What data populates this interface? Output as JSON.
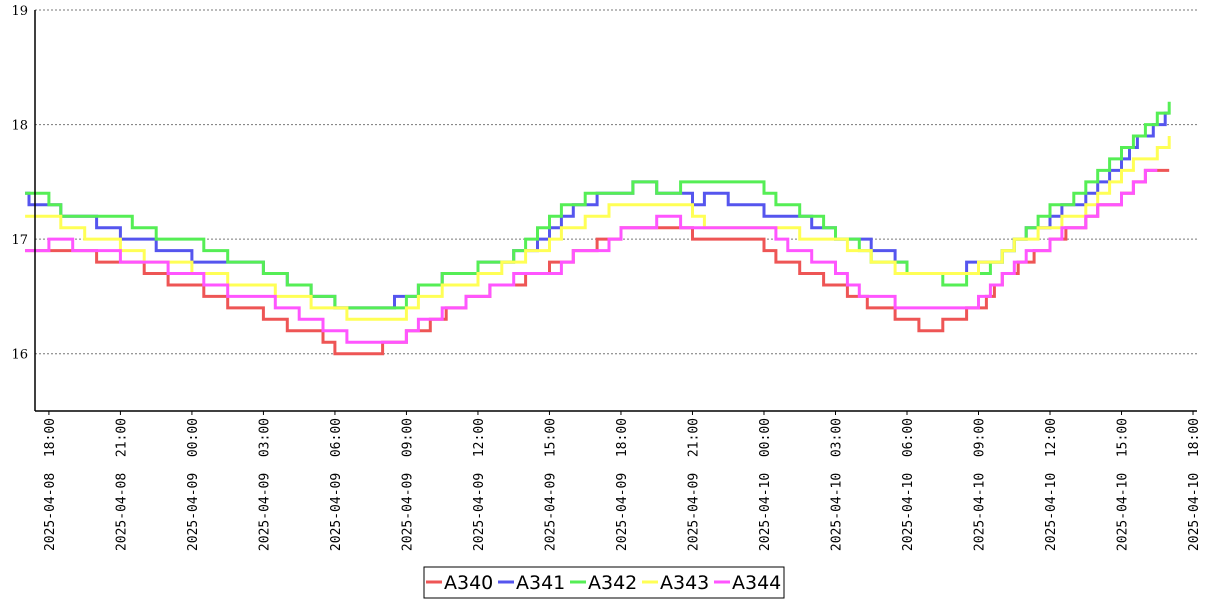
{
  "chart_data": {
    "type": "line",
    "title": "",
    "xlabel": "",
    "ylabel": "",
    "x_unit": "hour",
    "x_start": "2025-04-08 17:00",
    "x_end": "2025-04-10 17:00",
    "x_ticks": [
      "2025-04-08 18:00",
      "2025-04-08 21:00",
      "2025-04-09 00:00",
      "2025-04-09 03:00",
      "2025-04-09 06:00",
      "2025-04-09 09:00",
      "2025-04-09 12:00",
      "2025-04-09 15:00",
      "2025-04-09 18:00",
      "2025-04-09 21:00",
      "2025-04-10 00:00",
      "2025-04-10 03:00",
      "2025-04-10 06:00",
      "2025-04-10 09:00",
      "2025-04-10 12:00",
      "2025-04-10 15:00",
      "2025-04-10 18:00"
    ],
    "y_ticks": [
      "16",
      "17",
      "18",
      "19"
    ],
    "ylim": [
      15.5,
      19
    ],
    "xlim": [
      "2025-04-08 17:25",
      "2025-04-10 18:10"
    ],
    "grid": "horizontal dotted",
    "legend_placement": "bottom-center",
    "series": [
      {
        "name": "A340",
        "color": "#ee5555",
        "points": [
          [
            "2025-04-08 17:00",
            16.9
          ],
          [
            "2025-04-08 19:00",
            16.9
          ],
          [
            "2025-04-08 20:00",
            16.8
          ],
          [
            "2025-04-08 22:00",
            16.7
          ],
          [
            "2025-04-08 23:00",
            16.6
          ],
          [
            "2025-04-09 00:30",
            16.5
          ],
          [
            "2025-04-09 01:30",
            16.4
          ],
          [
            "2025-04-09 03:00",
            16.3
          ],
          [
            "2025-04-09 04:00",
            16.2
          ],
          [
            "2025-04-09 05:30",
            16.1
          ],
          [
            "2025-04-09 06:00",
            16.0
          ],
          [
            "2025-04-09 08:00",
            16.1
          ],
          [
            "2025-04-09 09:00",
            16.2
          ],
          [
            "2025-04-09 10:00",
            16.3
          ],
          [
            "2025-04-09 10:40",
            16.4
          ],
          [
            "2025-04-09 11:30",
            16.5
          ],
          [
            "2025-04-09 12:30",
            16.6
          ],
          [
            "2025-04-09 14:00",
            16.7
          ],
          [
            "2025-04-09 15:00",
            16.8
          ],
          [
            "2025-04-09 16:00",
            16.9
          ],
          [
            "2025-04-09 17:00",
            17.0
          ],
          [
            "2025-04-09 18:00",
            17.1
          ],
          [
            "2025-04-09 20:00",
            17.1
          ],
          [
            "2025-04-09 21:00",
            17.0
          ],
          [
            "2025-04-09 23:30",
            17.0
          ],
          [
            "2025-04-10 00:00",
            16.9
          ],
          [
            "2025-04-10 00:30",
            16.8
          ],
          [
            "2025-04-10 01:30",
            16.7
          ],
          [
            "2025-04-10 02:30",
            16.6
          ],
          [
            "2025-04-10 03:30",
            16.5
          ],
          [
            "2025-04-10 04:20",
            16.4
          ],
          [
            "2025-04-10 05:30",
            16.3
          ],
          [
            "2025-04-10 06:30",
            16.2
          ],
          [
            "2025-04-10 07:30",
            16.3
          ],
          [
            "2025-04-10 08:30",
            16.4
          ],
          [
            "2025-04-10 09:20",
            16.5
          ],
          [
            "2025-04-10 09:40",
            16.6
          ],
          [
            "2025-04-10 10:00",
            16.7
          ],
          [
            "2025-04-10 10:40",
            16.8
          ],
          [
            "2025-04-10 11:20",
            16.9
          ],
          [
            "2025-04-10 12:00",
            17.0
          ],
          [
            "2025-04-10 12:40",
            17.1
          ],
          [
            "2025-04-10 13:30",
            17.2
          ],
          [
            "2025-04-10 14:00",
            17.3
          ],
          [
            "2025-04-10 15:00",
            17.4
          ],
          [
            "2025-04-10 15:30",
            17.5
          ],
          [
            "2025-04-10 16:00",
            17.6
          ],
          [
            "2025-04-10 17:00",
            17.6
          ]
        ]
      },
      {
        "name": "A341",
        "color": "#5555ee",
        "points": [
          [
            "2025-04-08 17:00",
            17.4
          ],
          [
            "2025-04-08 17:10",
            17.3
          ],
          [
            "2025-04-08 18:30",
            17.2
          ],
          [
            "2025-04-08 20:00",
            17.1
          ],
          [
            "2025-04-08 21:00",
            17.0
          ],
          [
            "2025-04-08 22:30",
            16.9
          ],
          [
            "2025-04-09 00:00",
            16.8
          ],
          [
            "2025-04-09 03:00",
            16.7
          ],
          [
            "2025-04-09 04:00",
            16.6
          ],
          [
            "2025-04-09 05:00",
            16.5
          ],
          [
            "2025-04-09 06:00",
            16.4
          ],
          [
            "2025-04-09 08:30",
            16.5
          ],
          [
            "2025-04-09 09:30",
            16.6
          ],
          [
            "2025-04-09 10:30",
            16.7
          ],
          [
            "2025-04-09 12:00",
            16.8
          ],
          [
            "2025-04-09 13:30",
            16.9
          ],
          [
            "2025-04-09 14:30",
            17.0
          ],
          [
            "2025-04-09 15:00",
            17.1
          ],
          [
            "2025-04-09 15:30",
            17.2
          ],
          [
            "2025-04-09 16:00",
            17.3
          ],
          [
            "2025-04-09 17:00",
            17.4
          ],
          [
            "2025-04-09 18:30",
            17.5
          ],
          [
            "2025-04-09 19:30",
            17.4
          ],
          [
            "2025-04-09 21:00",
            17.3
          ],
          [
            "2025-04-09 21:30",
            17.4
          ],
          [
            "2025-04-09 22:30",
            17.3
          ],
          [
            "2025-04-10 00:00",
            17.2
          ],
          [
            "2025-04-10 02:00",
            17.1
          ],
          [
            "2025-04-10 03:00",
            17.0
          ],
          [
            "2025-04-10 04:30",
            16.9
          ],
          [
            "2025-04-10 05:30",
            16.8
          ],
          [
            "2025-04-10 06:00",
            16.7
          ],
          [
            "2025-04-10 08:30",
            16.8
          ],
          [
            "2025-04-10 10:00",
            16.9
          ],
          [
            "2025-04-10 10:30",
            17.0
          ],
          [
            "2025-04-10 11:00",
            17.1
          ],
          [
            "2025-04-10 12:00",
            17.2
          ],
          [
            "2025-04-10 12:30",
            17.3
          ],
          [
            "2025-04-10 13:30",
            17.4
          ],
          [
            "2025-04-10 14:00",
            17.5
          ],
          [
            "2025-04-10 14:30",
            17.6
          ],
          [
            "2025-04-10 15:00",
            17.7
          ],
          [
            "2025-04-10 15:20",
            17.8
          ],
          [
            "2025-04-10 15:40",
            17.9
          ],
          [
            "2025-04-10 16:20",
            18.0
          ],
          [
            "2025-04-10 16:50",
            18.1
          ],
          [
            "2025-04-10 17:00",
            18.1
          ]
        ]
      },
      {
        "name": "A342",
        "color": "#55ee55",
        "points": [
          [
            "2025-04-08 17:00",
            17.4
          ],
          [
            "2025-04-08 18:00",
            17.3
          ],
          [
            "2025-04-08 18:30",
            17.2
          ],
          [
            "2025-04-08 21:30",
            17.1
          ],
          [
            "2025-04-08 22:30",
            17.0
          ],
          [
            "2025-04-09 00:30",
            16.9
          ],
          [
            "2025-04-09 01:30",
            16.8
          ],
          [
            "2025-04-09 03:00",
            16.7
          ],
          [
            "2025-04-09 04:00",
            16.6
          ],
          [
            "2025-04-09 05:00",
            16.5
          ],
          [
            "2025-04-09 06:00",
            16.4
          ],
          [
            "2025-04-09 09:00",
            16.5
          ],
          [
            "2025-04-09 09:30",
            16.6
          ],
          [
            "2025-04-09 10:30",
            16.7
          ],
          [
            "2025-04-09 12:00",
            16.8
          ],
          [
            "2025-04-09 13:30",
            16.9
          ],
          [
            "2025-04-09 14:00",
            17.0
          ],
          [
            "2025-04-09 14:30",
            17.1
          ],
          [
            "2025-04-09 15:00",
            17.2
          ],
          [
            "2025-04-09 15:30",
            17.3
          ],
          [
            "2025-04-09 16:30",
            17.4
          ],
          [
            "2025-04-09 18:30",
            17.5
          ],
          [
            "2025-04-09 19:30",
            17.4
          ],
          [
            "2025-04-09 20:30",
            17.5
          ],
          [
            "2025-04-10 00:00",
            17.4
          ],
          [
            "2025-04-10 00:30",
            17.3
          ],
          [
            "2025-04-10 01:30",
            17.2
          ],
          [
            "2025-04-10 02:30",
            17.1
          ],
          [
            "2025-04-10 03:00",
            17.0
          ],
          [
            "2025-04-10 04:00",
            16.9
          ],
          [
            "2025-04-10 04:30",
            16.8
          ],
          [
            "2025-04-10 06:00",
            16.7
          ],
          [
            "2025-04-10 07:30",
            16.6
          ],
          [
            "2025-04-10 08:30",
            16.7
          ],
          [
            "2025-04-10 09:30",
            16.8
          ],
          [
            "2025-04-10 10:00",
            16.9
          ],
          [
            "2025-04-10 10:30",
            17.0
          ],
          [
            "2025-04-10 11:00",
            17.1
          ],
          [
            "2025-04-10 11:30",
            17.2
          ],
          [
            "2025-04-10 12:00",
            17.3
          ],
          [
            "2025-04-10 13:00",
            17.4
          ],
          [
            "2025-04-10 13:30",
            17.5
          ],
          [
            "2025-04-10 14:00",
            17.6
          ],
          [
            "2025-04-10 14:30",
            17.7
          ],
          [
            "2025-04-10 15:00",
            17.8
          ],
          [
            "2025-04-10 15:30",
            17.9
          ],
          [
            "2025-04-10 16:00",
            18.0
          ],
          [
            "2025-04-10 16:30",
            18.1
          ],
          [
            "2025-04-10 17:00",
            18.2
          ]
        ]
      },
      {
        "name": "A343",
        "color": "#ffff55",
        "points": [
          [
            "2025-04-08 17:00",
            17.2
          ],
          [
            "2025-04-08 18:30",
            17.1
          ],
          [
            "2025-04-08 19:30",
            17.0
          ],
          [
            "2025-04-08 21:00",
            16.9
          ],
          [
            "2025-04-08 22:00",
            16.8
          ],
          [
            "2025-04-09 00:00",
            16.7
          ],
          [
            "2025-04-09 01:30",
            16.6
          ],
          [
            "2025-04-09 03:30",
            16.5
          ],
          [
            "2025-04-09 05:00",
            16.4
          ],
          [
            "2025-04-09 06:30",
            16.3
          ],
          [
            "2025-04-09 09:00",
            16.4
          ],
          [
            "2025-04-09 09:30",
            16.5
          ],
          [
            "2025-04-09 10:30",
            16.6
          ],
          [
            "2025-04-09 12:00",
            16.7
          ],
          [
            "2025-04-09 13:00",
            16.8
          ],
          [
            "2025-04-09 14:00",
            16.9
          ],
          [
            "2025-04-09 15:00",
            17.0
          ],
          [
            "2025-04-09 15:30",
            17.1
          ],
          [
            "2025-04-09 16:30",
            17.2
          ],
          [
            "2025-04-09 17:30",
            17.3
          ],
          [
            "2025-04-09 21:00",
            17.2
          ],
          [
            "2025-04-09 21:30",
            17.1
          ],
          [
            "2025-04-10 01:30",
            17.0
          ],
          [
            "2025-04-10 03:30",
            16.9
          ],
          [
            "2025-04-10 04:30",
            16.8
          ],
          [
            "2025-04-10 05:30",
            16.7
          ],
          [
            "2025-04-10 09:00",
            16.8
          ],
          [
            "2025-04-10 10:00",
            16.9
          ],
          [
            "2025-04-10 10:30",
            17.0
          ],
          [
            "2025-04-10 11:30",
            17.1
          ],
          [
            "2025-04-10 12:30",
            17.2
          ],
          [
            "2025-04-10 13:30",
            17.3
          ],
          [
            "2025-04-10 14:00",
            17.4
          ],
          [
            "2025-04-10 14:30",
            17.5
          ],
          [
            "2025-04-10 15:00",
            17.6
          ],
          [
            "2025-04-10 15:30",
            17.7
          ],
          [
            "2025-04-10 16:30",
            17.8
          ],
          [
            "2025-04-10 17:00",
            17.9
          ]
        ]
      },
      {
        "name": "A344",
        "color": "#ff55ff",
        "points": [
          [
            "2025-04-08 17:00",
            16.9
          ],
          [
            "2025-04-08 18:00",
            17.0
          ],
          [
            "2025-04-08 19:00",
            16.9
          ],
          [
            "2025-04-08 21:00",
            16.8
          ],
          [
            "2025-04-08 23:00",
            16.7
          ],
          [
            "2025-04-09 00:30",
            16.6
          ],
          [
            "2025-04-09 01:30",
            16.5
          ],
          [
            "2025-04-09 03:30",
            16.4
          ],
          [
            "2025-04-09 04:30",
            16.3
          ],
          [
            "2025-04-09 05:30",
            16.2
          ],
          [
            "2025-04-09 06:30",
            16.1
          ],
          [
            "2025-04-09 09:00",
            16.2
          ],
          [
            "2025-04-09 09:30",
            16.3
          ],
          [
            "2025-04-09 10:30",
            16.4
          ],
          [
            "2025-04-09 11:30",
            16.5
          ],
          [
            "2025-04-09 12:30",
            16.6
          ],
          [
            "2025-04-09 13:30",
            16.7
          ],
          [
            "2025-04-09 15:30",
            16.8
          ],
          [
            "2025-04-09 16:00",
            16.9
          ],
          [
            "2025-04-09 17:30",
            17.0
          ],
          [
            "2025-04-09 18:00",
            17.1
          ],
          [
            "2025-04-09 19:30",
            17.2
          ],
          [
            "2025-04-09 20:30",
            17.1
          ],
          [
            "2025-04-10 00:30",
            17.0
          ],
          [
            "2025-04-10 01:00",
            16.9
          ],
          [
            "2025-04-10 02:00",
            16.8
          ],
          [
            "2025-04-10 03:00",
            16.7
          ],
          [
            "2025-04-10 03:30",
            16.6
          ],
          [
            "2025-04-10 04:00",
            16.5
          ],
          [
            "2025-04-10 05:30",
            16.4
          ],
          [
            "2025-04-10 09:00",
            16.5
          ],
          [
            "2025-04-10 09:30",
            16.6
          ],
          [
            "2025-04-10 10:00",
            16.7
          ],
          [
            "2025-04-10 10:30",
            16.8
          ],
          [
            "2025-04-10 11:00",
            16.9
          ],
          [
            "2025-04-10 12:00",
            17.0
          ],
          [
            "2025-04-10 12:30",
            17.1
          ],
          [
            "2025-04-10 13:30",
            17.2
          ],
          [
            "2025-04-10 14:00",
            17.3
          ],
          [
            "2025-04-10 15:00",
            17.4
          ],
          [
            "2025-04-10 15:30",
            17.5
          ],
          [
            "2025-04-10 16:00",
            17.6
          ],
          [
            "2025-04-10 16:30",
            17.6
          ]
        ]
      }
    ]
  }
}
